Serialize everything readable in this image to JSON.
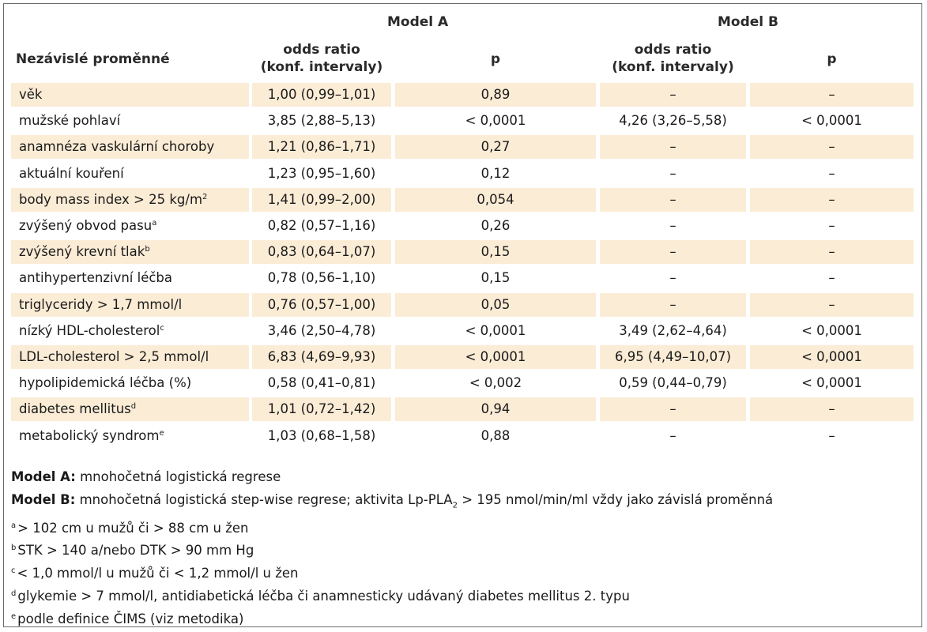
{
  "header": {
    "model_a": "Model A",
    "model_b": "Model B",
    "variable_col": "Nezávislé proměnné",
    "or_line1": "odds ratio",
    "or_line2": "(konf. intervaly)",
    "p": "p"
  },
  "rows": [
    {
      "label": "věk",
      "sup": "",
      "a_or": "1,00 (0,99–1,01)",
      "a_p": "0,89",
      "b_or": "–",
      "b_p": "–",
      "shaded": true
    },
    {
      "label": "mužské pohlaví",
      "sup": "",
      "a_or": "3,85 (2,88–5,13)",
      "a_p": "< 0,0001",
      "b_or": "4,26 (3,26–5,58)",
      "b_p": "< 0,0001",
      "shaded": false
    },
    {
      "label": "anamnéza vaskulární choroby",
      "sup": "",
      "a_or": "1,21 (0,86–1,71)",
      "a_p": "0,27",
      "b_or": "–",
      "b_p": "–",
      "shaded": true
    },
    {
      "label": "aktuální kouření",
      "sup": "",
      "a_or": "1,23 (0,95–1,60)",
      "a_p": "0,12",
      "b_or": "–",
      "b_p": "–",
      "shaded": false
    },
    {
      "label": "body mass index > 25 kg/m",
      "sup": "2",
      "a_or": "1,41 (0,99–2,00)",
      "a_p": "0,054",
      "b_or": "–",
      "b_p": "–",
      "shaded": true
    },
    {
      "label": "zvýšený obvod pasu",
      "sup": "a",
      "a_or": "0,82 (0,57–1,16)",
      "a_p": "0,26",
      "b_or": "–",
      "b_p": "–",
      "shaded": false
    },
    {
      "label": "zvýšený krevní tlak",
      "sup": "b",
      "a_or": "0,83 (0,64–1,07)",
      "a_p": "0,15",
      "b_or": "–",
      "b_p": "–",
      "shaded": true
    },
    {
      "label": "antihypertenzivní léčba",
      "sup": "",
      "a_or": "0,78 (0,56–1,10)",
      "a_p": "0,15",
      "b_or": "–",
      "b_p": "–",
      "shaded": false
    },
    {
      "label": "triglyceridy > 1,7 mmol/l",
      "sup": "",
      "a_or": "0,76 (0,57–1,00)",
      "a_p": "0,05",
      "b_or": "–",
      "b_p": "–",
      "shaded": true
    },
    {
      "label": "nízký HDL-cholesterol",
      "sup": "c",
      "a_or": "3,46 (2,50–4,78)",
      "a_p": "< 0,0001",
      "b_or": "3,49 (2,62–4,64)",
      "b_p": "< 0,0001",
      "shaded": false
    },
    {
      "label": "LDL-cholesterol > 2,5 mmol/l",
      "sup": "",
      "a_or": "6,83 (4,69–9,93)",
      "a_p": "< 0,0001",
      "b_or": "6,95 (4,49–10,07)",
      "b_p": "< 0,0001",
      "shaded": true
    },
    {
      "label": "hypolipidemická léčba (%)",
      "sup": "",
      "a_or": "0,58 (0,41–0,81)",
      "a_p": "< 0,002",
      "b_or": "0,59 (0,44–0,79)",
      "b_p": "< 0,0001",
      "shaded": false
    },
    {
      "label": "diabetes mellitus",
      "sup": "d",
      "a_or": "1,01 (0,72–1,42)",
      "a_p": "0,94",
      "b_or": "–",
      "b_p": "–",
      "shaded": true
    },
    {
      "label": "metabolický syndrom",
      "sup": "e",
      "a_or": "1,03 (0,68–1,58)",
      "a_p": "0,88",
      "b_or": "–",
      "b_p": "–",
      "shaded": false
    }
  ],
  "notes": {
    "model_a_label": "Model A:",
    "model_a_text": " mnohočetná logistická regrese",
    "model_b_label": "Model B:",
    "model_b_text_1": " mnohočetná logistická step-wise regrese; aktivita Lp-PLA",
    "model_b_sub": "2",
    "model_b_text_2": " > 195 nmol/min/ml vždy jako závislá proměnná",
    "footnotes": [
      {
        "mark": "a",
        "text": "> 102 cm u mužů či > 88 cm u žen"
      },
      {
        "mark": "b",
        "text": "STK > 140 a/nebo DTK > 90 mm Hg"
      },
      {
        "mark": "c",
        "text": "< 1,0 mmol/l u mužů či < 1,2 mmol/l u žen"
      },
      {
        "mark": "d",
        "text": "glykemie > 7 mmol/l, antidiabetická léčba či anamnesticky udávaný diabetes mellitus 2. typu"
      },
      {
        "mark": "e",
        "text": "podle definice ČIMS (viz metodika)"
      }
    ]
  },
  "colors": {
    "row_shade": "#fbecd6",
    "border": "#6b6b6b"
  }
}
